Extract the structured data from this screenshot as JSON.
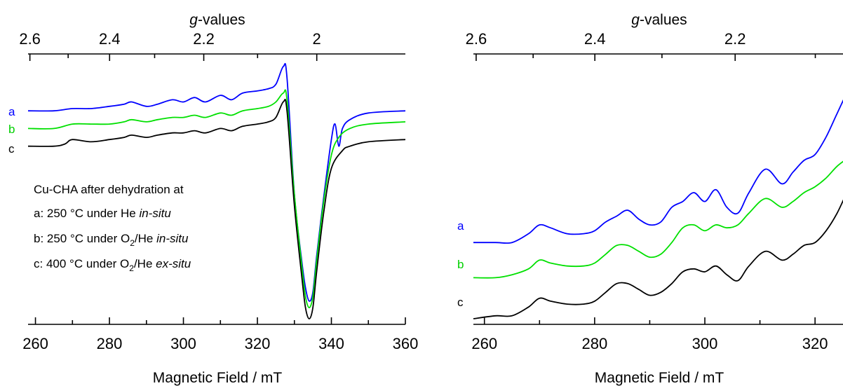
{
  "chart_data": [
    {
      "type": "line",
      "panel": "left",
      "xlabel": "Magnetic Field / mT",
      "x_ticks": [
        260,
        280,
        300,
        320,
        340,
        360
      ],
      "xlim": [
        258,
        360
      ],
      "top_axis": {
        "label_prefix": "g",
        "label_suffix": "-values",
        "ticks": [
          "2.6",
          "2.4",
          "2.2",
          "2"
        ]
      },
      "legend_title": "Cu-CHA after dehydration at",
      "legend_lines": [
        {
          "prefix": "a: 250 °C under He ",
          "sub": "",
          "mid": "",
          "ital": "in-situ"
        },
        {
          "prefix": "b: 250 °C under O",
          "sub": "2",
          "mid": "/He ",
          "ital": "in-situ"
        },
        {
          "prefix": "c: 400 °C under O",
          "sub": "2",
          "mid": "/He ",
          "ital": "ex-situ"
        }
      ],
      "series": [
        {
          "name": "a",
          "color": "#0000ff",
          "x": [
            258,
            265,
            270,
            275,
            280,
            284,
            286,
            290,
            293,
            297,
            300,
            303,
            306,
            310,
            313,
            316,
            320,
            323,
            325,
            327,
            328,
            330,
            332,
            333,
            334,
            335,
            336,
            338,
            340,
            341,
            342,
            343,
            345,
            350,
            360
          ],
          "y": [
            0.78,
            0.78,
            0.79,
            0.79,
            0.8,
            0.81,
            0.82,
            0.8,
            0.81,
            0.83,
            0.82,
            0.84,
            0.82,
            0.85,
            0.83,
            0.86,
            0.87,
            0.88,
            0.9,
            0.98,
            0.93,
            0.4,
            0.1,
            -0.02,
            -0.08,
            -0.04,
            0.12,
            0.4,
            0.65,
            0.72,
            0.62,
            0.7,
            0.74,
            0.77,
            0.78
          ]
        },
        {
          "name": "b",
          "color": "#00e000",
          "x": [
            258,
            265,
            270,
            275,
            280,
            284,
            286,
            290,
            293,
            297,
            300,
            303,
            306,
            310,
            313,
            316,
            320,
            323,
            325,
            327,
            328,
            330,
            332,
            333,
            334,
            335,
            336,
            338,
            340,
            342,
            345,
            350,
            360
          ],
          "y": [
            0.7,
            0.7,
            0.72,
            0.72,
            0.72,
            0.73,
            0.74,
            0.73,
            0.74,
            0.75,
            0.75,
            0.76,
            0.75,
            0.77,
            0.76,
            0.78,
            0.79,
            0.8,
            0.82,
            0.86,
            0.83,
            0.4,
            0.08,
            -0.06,
            -0.11,
            -0.06,
            0.1,
            0.38,
            0.58,
            0.66,
            0.7,
            0.72,
            0.73
          ]
        },
        {
          "name": "c",
          "color": "#000000",
          "x": [
            258,
            265,
            268,
            270,
            275,
            280,
            284,
            286,
            290,
            293,
            297,
            300,
            303,
            306,
            310,
            313,
            316,
            320,
            323,
            325,
            327,
            328,
            330,
            332,
            333,
            334,
            335,
            336,
            338,
            340,
            343,
            345,
            350,
            360
          ],
          "y": [
            0.62,
            0.62,
            0.63,
            0.65,
            0.64,
            0.65,
            0.66,
            0.67,
            0.66,
            0.67,
            0.68,
            0.68,
            0.69,
            0.68,
            0.7,
            0.69,
            0.71,
            0.72,
            0.73,
            0.75,
            0.82,
            0.78,
            0.35,
            0.03,
            -0.11,
            -0.16,
            -0.11,
            0.05,
            0.33,
            0.52,
            0.6,
            0.62,
            0.64,
            0.65
          ]
        }
      ]
    },
    {
      "type": "line",
      "panel": "right",
      "xlabel": "Magnetic Field / mT",
      "x_ticks": [
        260,
        280,
        300,
        320
      ],
      "xlim": [
        258,
        328
      ],
      "top_axis": {
        "label_prefix": "g",
        "label_suffix": "-values",
        "ticks": [
          "2.6",
          "2.4",
          "2.2"
        ]
      },
      "series": [
        {
          "name": "a",
          "color": "#0000ff",
          "x": [
            258,
            262,
            265,
            268,
            270,
            272,
            275,
            278,
            280,
            282,
            284,
            286,
            288,
            290,
            292,
            294,
            296,
            298,
            300,
            302,
            304,
            306,
            308,
            311,
            314,
            316,
            318,
            320,
            322,
            324,
            326,
            328
          ],
          "y": [
            0.38,
            0.38,
            0.38,
            0.41,
            0.44,
            0.43,
            0.41,
            0.41,
            0.42,
            0.45,
            0.47,
            0.49,
            0.46,
            0.44,
            0.45,
            0.5,
            0.52,
            0.55,
            0.52,
            0.56,
            0.5,
            0.48,
            0.55,
            0.63,
            0.58,
            0.62,
            0.66,
            0.68,
            0.74,
            0.82,
            0.9,
            0.98
          ]
        },
        {
          "name": "b",
          "color": "#00e000",
          "x": [
            258,
            262,
            265,
            268,
            270,
            272,
            275,
            278,
            280,
            282,
            284,
            286,
            288,
            290,
            292,
            294,
            296,
            298,
            300,
            302,
            304,
            306,
            308,
            311,
            314,
            316,
            318,
            320,
            322,
            324,
            326,
            328
          ],
          "y": [
            0.26,
            0.26,
            0.27,
            0.29,
            0.32,
            0.31,
            0.3,
            0.3,
            0.31,
            0.34,
            0.37,
            0.37,
            0.35,
            0.33,
            0.34,
            0.38,
            0.43,
            0.44,
            0.42,
            0.44,
            0.43,
            0.44,
            0.48,
            0.53,
            0.5,
            0.52,
            0.55,
            0.57,
            0.6,
            0.64,
            0.67,
            0.71
          ]
        },
        {
          "name": "c",
          "color": "#000000",
          "x": [
            258,
            262,
            265,
            268,
            270,
            272,
            275,
            278,
            280,
            282,
            284,
            286,
            288,
            290,
            292,
            294,
            296,
            298,
            300,
            302,
            304,
            306,
            308,
            311,
            314,
            316,
            318,
            320,
            322,
            324,
            326,
            328
          ],
          "y": [
            0.12,
            0.13,
            0.13,
            0.16,
            0.19,
            0.18,
            0.17,
            0.17,
            0.18,
            0.21,
            0.24,
            0.24,
            0.22,
            0.2,
            0.21,
            0.24,
            0.28,
            0.29,
            0.28,
            0.3,
            0.27,
            0.25,
            0.3,
            0.35,
            0.32,
            0.34,
            0.37,
            0.38,
            0.42,
            0.48,
            0.56,
            0.64
          ]
        }
      ]
    }
  ]
}
